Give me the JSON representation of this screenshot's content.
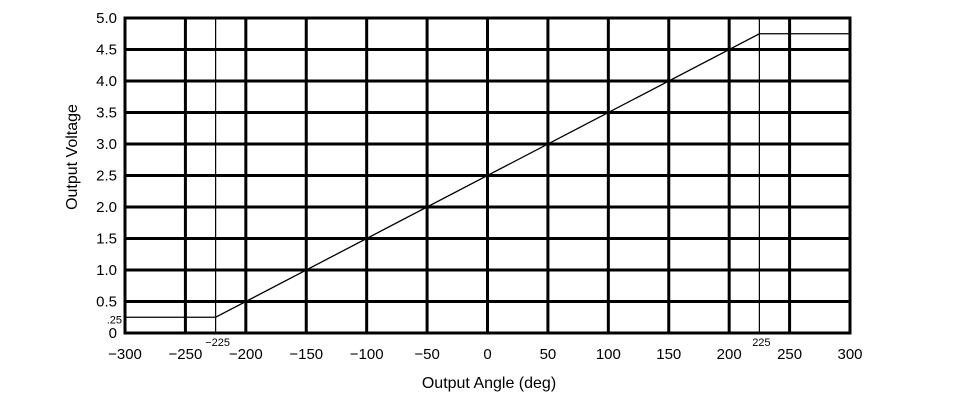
{
  "chart_data": {
    "type": "line",
    "title": "",
    "xlabel": "Output Angle (deg)",
    "ylabel": "Output Voltage",
    "xlim": [
      -300,
      300
    ],
    "ylim": [
      0,
      5.0
    ],
    "grid": true,
    "x_ticks": [
      {
        "value": -300,
        "label": "−300"
      },
      {
        "value": -250,
        "label": "−250"
      },
      {
        "value": -200,
        "label": "−200"
      },
      {
        "value": -150,
        "label": "−150"
      },
      {
        "value": -100,
        "label": "−100"
      },
      {
        "value": -50,
        "label": "−50"
      },
      {
        "value": 0,
        "label": "0"
      },
      {
        "value": 50,
        "label": "50"
      },
      {
        "value": 100,
        "label": "100"
      },
      {
        "value": 150,
        "label": "150"
      },
      {
        "value": 200,
        "label": "200"
      },
      {
        "value": 250,
        "label": "250"
      },
      {
        "value": 300,
        "label": "300"
      }
    ],
    "y_ticks": [
      {
        "value": 0,
        "label": "0"
      },
      {
        "value": 0.5,
        "label": "0.5"
      },
      {
        "value": 1.0,
        "label": "1.0"
      },
      {
        "value": 1.5,
        "label": "1.5"
      },
      {
        "value": 2.0,
        "label": "2.0"
      },
      {
        "value": 2.5,
        "label": "2.5"
      },
      {
        "value": 3.0,
        "label": "3.0"
      },
      {
        "value": 3.5,
        "label": "3.5"
      },
      {
        "value": 4.0,
        "label": "4.0"
      },
      {
        "value": 4.5,
        "label": "4.5"
      },
      {
        "value": 5.0,
        "label": "5.0"
      }
    ],
    "extra_x_marks": [
      {
        "value": -225,
        "label": "−225"
      },
      {
        "value": 225,
        "label": "225"
      }
    ],
    "extra_y_marks": [
      {
        "value": 0.25,
        "label": ".25"
      },
      {
        "value": 4.75,
        "label": ""
      }
    ],
    "series": [
      {
        "x": [
          -300,
          -225,
          225,
          300
        ],
        "y": [
          0.25,
          0.25,
          4.75,
          4.75
        ]
      }
    ]
  }
}
